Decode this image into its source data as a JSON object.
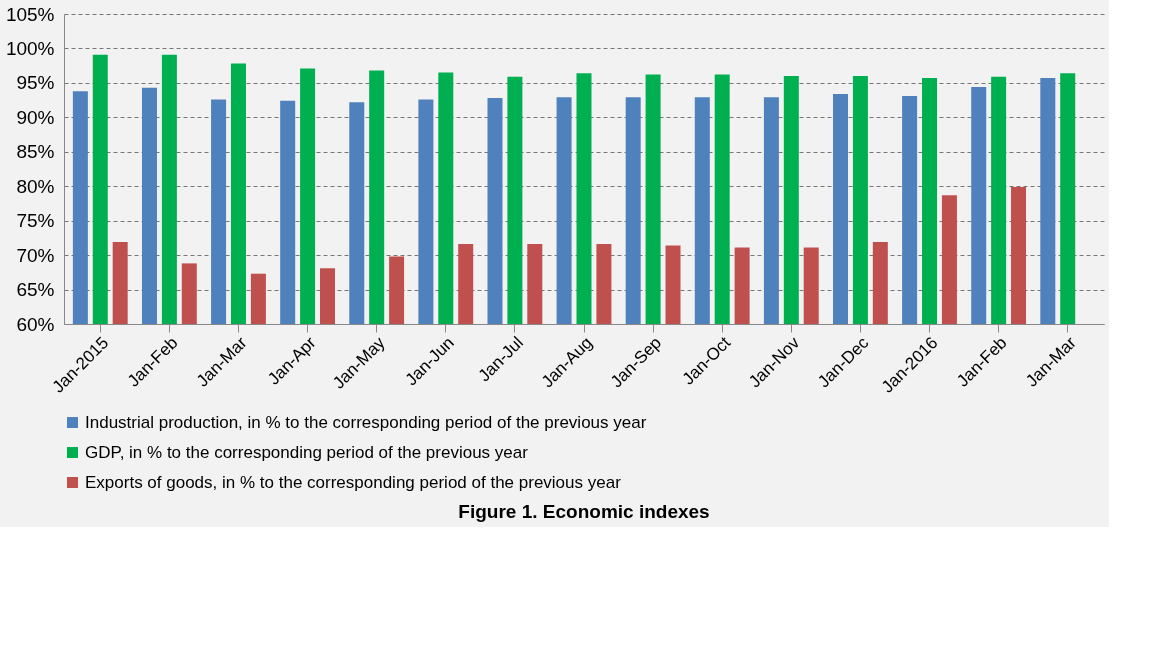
{
  "chart_data": {
    "type": "bar",
    "title": "Figure  1. Economic indexes",
    "categories": [
      "Jan-2015",
      "Jan-Feb",
      "Jan-Mar",
      "Jan-Apr",
      "Jan-May",
      "Jan-Jun",
      "Jan-Jul",
      "Jan-Aug",
      "Jan-Sep",
      "Jan-Oct",
      "Jan-Nov",
      "Jan-Dec",
      "Jan-2016",
      "Jan-Feb",
      "Jan-Mar"
    ],
    "series": [
      {
        "name": "Industrial production, in % to the corresponding period of the previous year",
        "color": "#4f81bd",
        "values": [
          93.8,
          94.3,
          92.6,
          92.4,
          92.2,
          92.6,
          92.8,
          92.9,
          92.9,
          92.9,
          92.9,
          93.4,
          93.1,
          94.4,
          95.7
        ]
      },
      {
        "name": "GDP, in % to the corresponding period of the previous year",
        "color": "#00b050",
        "values": [
          99.1,
          99.1,
          97.8,
          97.1,
          96.8,
          96.5,
          95.9,
          96.4,
          96.2,
          96.2,
          96.0,
          96.0,
          95.7,
          95.9,
          96.4
        ]
      },
      {
        "name": "Exports of goods, in % to the corresponding period of the previous year",
        "color": "#c0504d",
        "values": [
          71.9,
          68.8,
          67.3,
          68.1,
          69.8,
          71.6,
          71.6,
          71.6,
          71.4,
          71.1,
          71.1,
          71.9,
          78.7,
          79.9,
          null
        ]
      }
    ],
    "ylim": [
      60,
      105
    ],
    "yticks": [
      {
        "value": 60,
        "label": "60%"
      },
      {
        "value": 65,
        "label": "65%"
      },
      {
        "value": 70,
        "label": "70%"
      },
      {
        "value": 75,
        "label": "75%"
      },
      {
        "value": 80,
        "label": "80%"
      },
      {
        "value": 85,
        "label": "85%"
      },
      {
        "value": 90,
        "label": "90%"
      },
      {
        "value": 95,
        "label": "95%"
      },
      {
        "value": 100,
        "label": "100%"
      },
      {
        "value": 105,
        "label": "105%"
      }
    ],
    "grid": "y",
    "legend": "bottom"
  }
}
